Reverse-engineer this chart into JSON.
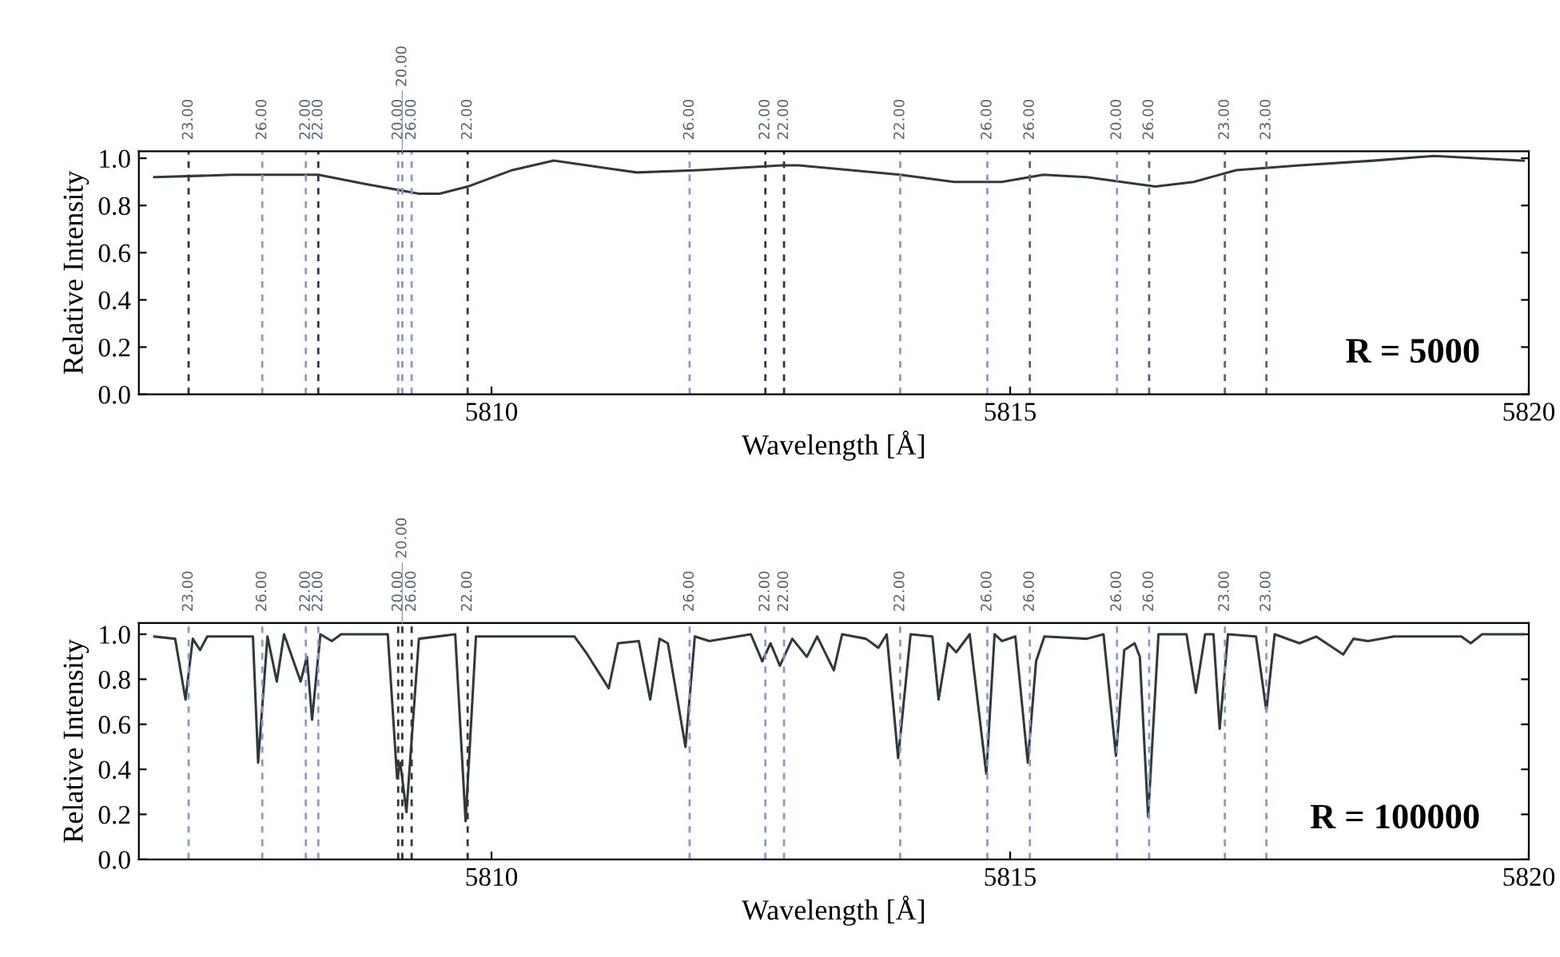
{
  "chart_data": [
    {
      "type": "line",
      "xlabel": "Wavelength [Å]",
      "ylabel": "Relative Intensity",
      "xlim": [
        5806.6,
        5820
      ],
      "ylim": [
        0,
        1.03
      ],
      "xticks": [
        5810,
        5815,
        5820
      ],
      "yticks": [
        {
          "value": 0,
          "label": "0.0"
        },
        {
          "value": 0.2,
          "label": "0.2"
        },
        {
          "value": 0.4,
          "label": "0.4"
        },
        {
          "value": 0.6,
          "label": "0.6"
        },
        {
          "value": 0.8,
          "label": "0.8"
        },
        {
          "value": 1.0,
          "label": "1.0"
        }
      ],
      "grid": false,
      "line_style": "solid",
      "marker": "none",
      "series": [
        {
          "color": "#2f3a3a",
          "x": [
            5806.75,
            5807.5,
            5808.33,
            5808.8,
            5809.3,
            5809.5,
            5809.77,
            5810.2,
            5810.6,
            5811.4,
            5812.0,
            5812.8,
            5812.96,
            5813.94,
            5814.46,
            5814.92,
            5815.32,
            5815.74,
            5816.4,
            5816.77,
            5817.18,
            5817.79,
            5818.5,
            5819.09,
            5819.95
          ],
          "values": [
            0.92,
            0.93,
            0.93,
            0.89,
            0.85,
            0.85,
            0.88,
            0.95,
            0.99,
            0.94,
            0.95,
            0.97,
            0.97,
            0.93,
            0.9,
            0.9,
            0.93,
            0.92,
            0.88,
            0.9,
            0.95,
            0.97,
            0.99,
            1.01,
            0.99
          ]
        }
      ],
      "ref_lines": [
        {
          "axis": "x",
          "value": 5807.08,
          "color": "#333344",
          "line_style": "dashed"
        },
        {
          "axis": "x",
          "value": 5807.79,
          "color": "#8899cc",
          "line_style": "dashed"
        },
        {
          "axis": "x",
          "value": 5808.21,
          "color": "#8899cc",
          "line_style": "dashed"
        },
        {
          "axis": "x",
          "value": 5808.33,
          "color": "#333344",
          "line_style": "dashed"
        },
        {
          "axis": "x",
          "value": 5809.1,
          "color": "#8899cc",
          "line_style": "dashed"
        },
        {
          "axis": "x",
          "value": 5809.14,
          "color": "#8899cc",
          "line_style": "dashed"
        },
        {
          "axis": "x",
          "value": 5809.23,
          "color": "#8899cc",
          "line_style": "dashed"
        },
        {
          "axis": "x",
          "value": 5809.77,
          "color": "#333344",
          "line_style": "dashed"
        },
        {
          "axis": "x",
          "value": 5811.91,
          "color": "#8899cc",
          "line_style": "dashed"
        },
        {
          "axis": "x",
          "value": 5812.64,
          "color": "#333344",
          "line_style": "dashed"
        },
        {
          "axis": "x",
          "value": 5812.82,
          "color": "#333344",
          "line_style": "dashed"
        },
        {
          "axis": "x",
          "value": 5813.94,
          "color": "#8899cc",
          "line_style": "dashed"
        },
        {
          "axis": "x",
          "value": 5814.78,
          "color": "#8899cc",
          "line_style": "dashed"
        },
        {
          "axis": "x",
          "value": 5815.19,
          "color": "#556677",
          "line_style": "dashed"
        },
        {
          "axis": "x",
          "value": 5816.03,
          "color": "#8899cc",
          "line_style": "dashed"
        },
        {
          "axis": "x",
          "value": 5816.34,
          "color": "#556677",
          "line_style": "dashed"
        },
        {
          "axis": "x",
          "value": 5817.07,
          "color": "#556677",
          "line_style": "dashed"
        },
        {
          "axis": "x",
          "value": 5817.47,
          "color": "#556677",
          "line_style": "dashed"
        }
      ],
      "annotations": [
        {
          "text": "23.00",
          "x": 5807.08,
          "y": 1.03
        },
        {
          "text": "26.00",
          "x": 5807.79,
          "y": 1.03
        },
        {
          "text": "22.00",
          "x": 5808.21,
          "y": 1.03
        },
        {
          "text": "22.00",
          "x": 5808.33,
          "y": 1.03
        },
        {
          "text": "20.00",
          "x": 5809.1,
          "y": 1.03
        },
        {
          "text": "20.00",
          "x": 5809.14,
          "y": 1.03
        },
        {
          "text": "26.00",
          "x": 5809.23,
          "y": 1.03
        },
        {
          "text": "22.00",
          "x": 5809.77,
          "y": 1.03
        },
        {
          "text": "26.00",
          "x": 5811.91,
          "y": 1.03
        },
        {
          "text": "22.00",
          "x": 5812.64,
          "y": 1.03
        },
        {
          "text": "22.00",
          "x": 5812.82,
          "y": 1.03
        },
        {
          "text": "22.00",
          "x": 5813.94,
          "y": 1.03
        },
        {
          "text": "26.00",
          "x": 5814.78,
          "y": 1.03
        },
        {
          "text": "26.00",
          "x": 5815.19,
          "y": 1.03
        },
        {
          "text": "20.00",
          "x": 5816.03,
          "y": 1.03
        },
        {
          "text": "26.00",
          "x": 5816.34,
          "y": 1.03
        },
        {
          "text": "23.00",
          "x": 5817.07,
          "y": 1.03
        },
        {
          "text": "23.00",
          "x": 5817.47,
          "y": 1.03
        },
        "R = 5000"
      ]
    },
    {
      "type": "line",
      "xlabel": "Wavelength [Å]",
      "ylabel": "Relative Intensity",
      "xlim": [
        5806.6,
        5820
      ],
      "ylim": [
        0,
        1.05
      ],
      "xticks": [
        5810,
        5815,
        5820
      ],
      "yticks": [
        {
          "value": 0,
          "label": "0.0"
        },
        {
          "value": 0.2,
          "label": "0.2"
        },
        {
          "value": 0.4,
          "label": "0.4"
        },
        {
          "value": 0.6,
          "label": "0.6"
        },
        {
          "value": 0.8,
          "label": "0.8"
        },
        {
          "value": 1.0,
          "label": "1.0"
        }
      ],
      "grid": false,
      "line_style": "solid",
      "marker": "none",
      "series": [
        {
          "color": "#2f3a3a",
          "x": [
            5806.75,
            5806.95,
            5807.05,
            5807.12,
            5807.19,
            5807.26,
            5807.7,
            5807.75,
            5807.84,
            5807.93,
            5808.0,
            5808.16,
            5808.22,
            5808.27,
            5808.35,
            5808.46,
            5808.55,
            5809.0,
            5809.09,
            5809.12,
            5809.18,
            5809.3,
            5809.65,
            5809.75,
            5809.85,
            5810.54,
            5810.8,
            5810.91,
            5811.13,
            5811.22,
            5811.42,
            5811.53,
            5811.62,
            5811.7,
            5811.87,
            5811.96,
            5812.1,
            5812.5,
            5812.61,
            5812.69,
            5812.78,
            5812.9,
            5813.04,
            5813.14,
            5813.3,
            5813.38,
            5813.61,
            5813.73,
            5813.81,
            5813.92,
            5814.04,
            5814.25,
            5814.31,
            5814.4,
            5814.48,
            5814.61,
            5814.77,
            5814.85,
            5814.92,
            5815.05,
            5815.17,
            5815.25,
            5815.33,
            5815.74,
            5815.9,
            5816.02,
            5816.1,
            5816.2,
            5816.25,
            5816.33,
            5816.43,
            5816.7,
            5816.79,
            5816.88,
            5816.96,
            5817.02,
            5817.1,
            5817.37,
            5817.47,
            5817.55,
            5817.79,
            5817.95,
            5818.21,
            5818.31,
            5818.45,
            5818.7,
            5819.35,
            5819.44,
            5819.55,
            5819.95
          ],
          "values": [
            0.99,
            0.98,
            0.71,
            0.98,
            0.93,
            0.99,
            0.99,
            0.43,
            0.99,
            0.79,
            1.0,
            0.79,
            0.9,
            0.62,
            1.0,
            0.97,
            1.0,
            1.0,
            0.36,
            0.43,
            0.21,
            0.98,
            1.0,
            0.17,
            0.99,
            0.99,
            0.99,
            0.92,
            0.76,
            0.96,
            0.97,
            0.71,
            0.98,
            0.96,
            0.5,
            0.99,
            0.97,
            1.0,
            0.88,
            0.96,
            0.86,
            0.98,
            0.9,
            0.99,
            0.84,
            1.0,
            0.98,
            0.94,
            1.0,
            0.45,
            1.0,
            0.99,
            0.71,
            0.96,
            0.92,
            1.0,
            0.38,
            1.0,
            0.97,
            0.99,
            0.43,
            0.88,
            0.99,
            0.98,
            1.0,
            0.46,
            0.93,
            0.96,
            0.9,
            0.19,
            1.0,
            1.0,
            0.74,
            1.0,
            1.0,
            0.58,
            1.0,
            0.99,
            0.66,
            1.0,
            0.96,
            0.99,
            0.91,
            0.98,
            0.97,
            0.99,
            0.99,
            0.96,
            1.0,
            1.0
          ]
        }
      ],
      "ref_lines": [
        {
          "axis": "x",
          "value": 5807.08,
          "color": "#8899cc",
          "line_style": "dashed"
        },
        {
          "axis": "x",
          "value": 5807.79,
          "color": "#8899cc",
          "line_style": "dashed"
        },
        {
          "axis": "x",
          "value": 5808.21,
          "color": "#8899cc",
          "line_style": "dashed"
        },
        {
          "axis": "x",
          "value": 5808.33,
          "color": "#8899cc",
          "line_style": "dashed"
        },
        {
          "axis": "x",
          "value": 5809.1,
          "color": "#333344",
          "line_style": "dashed"
        },
        {
          "axis": "x",
          "value": 5809.14,
          "color": "#333344",
          "line_style": "dashed"
        },
        {
          "axis": "x",
          "value": 5809.23,
          "color": "#333344",
          "line_style": "dashed"
        },
        {
          "axis": "x",
          "value": 5809.77,
          "color": "#333344",
          "line_style": "dashed"
        },
        {
          "axis": "x",
          "value": 5811.91,
          "color": "#8899cc",
          "line_style": "dashed"
        },
        {
          "axis": "x",
          "value": 5812.64,
          "color": "#8899cc",
          "line_style": "dashed"
        },
        {
          "axis": "x",
          "value": 5812.82,
          "color": "#8899cc",
          "line_style": "dashed"
        },
        {
          "axis": "x",
          "value": 5813.94,
          "color": "#8899cc",
          "line_style": "dashed"
        },
        {
          "axis": "x",
          "value": 5814.78,
          "color": "#8899cc",
          "line_style": "dashed"
        },
        {
          "axis": "x",
          "value": 5815.19,
          "color": "#8899cc",
          "line_style": "dashed"
        },
        {
          "axis": "x",
          "value": 5816.03,
          "color": "#8899cc",
          "line_style": "dashed"
        },
        {
          "axis": "x",
          "value": 5816.34,
          "color": "#8899cc",
          "line_style": "dashed"
        },
        {
          "axis": "x",
          "value": 5817.07,
          "color": "#8899cc",
          "line_style": "dashed"
        },
        {
          "axis": "x",
          "value": 5817.47,
          "color": "#8899cc",
          "line_style": "dashed"
        }
      ],
      "annotations": [
        {
          "text": "23.00",
          "x": 5807.08,
          "y": 1.05
        },
        {
          "text": "26.00",
          "x": 5807.79,
          "y": 1.05
        },
        {
          "text": "22.00",
          "x": 5808.21,
          "y": 1.05
        },
        {
          "text": "22.00",
          "x": 5808.33,
          "y": 1.05
        },
        {
          "text": "20.00",
          "x": 5809.1,
          "y": 1.05
        },
        {
          "text": "20.00",
          "x": 5809.14,
          "y": 1.05
        },
        {
          "text": "26.00",
          "x": 5809.23,
          "y": 1.05
        },
        {
          "text": "22.00",
          "x": 5809.77,
          "y": 1.05
        },
        {
          "text": "26.00",
          "x": 5811.91,
          "y": 1.05
        },
        {
          "text": "22.00",
          "x": 5812.64,
          "y": 1.05
        },
        {
          "text": "22.00",
          "x": 5812.82,
          "y": 1.05
        },
        {
          "text": "22.00",
          "x": 5813.94,
          "y": 1.05
        },
        {
          "text": "26.00",
          "x": 5814.78,
          "y": 1.05
        },
        {
          "text": "26.00",
          "x": 5815.19,
          "y": 1.05
        },
        {
          "text": "26.00",
          "x": 5816.03,
          "y": 1.05
        },
        {
          "text": "26.00",
          "x": 5816.34,
          "y": 1.05
        },
        {
          "text": "23.00",
          "x": 5817.07,
          "y": 1.05
        },
        {
          "text": "23.00",
          "x": 5817.47,
          "y": 1.05
        },
        "R = 100000"
      ]
    }
  ]
}
